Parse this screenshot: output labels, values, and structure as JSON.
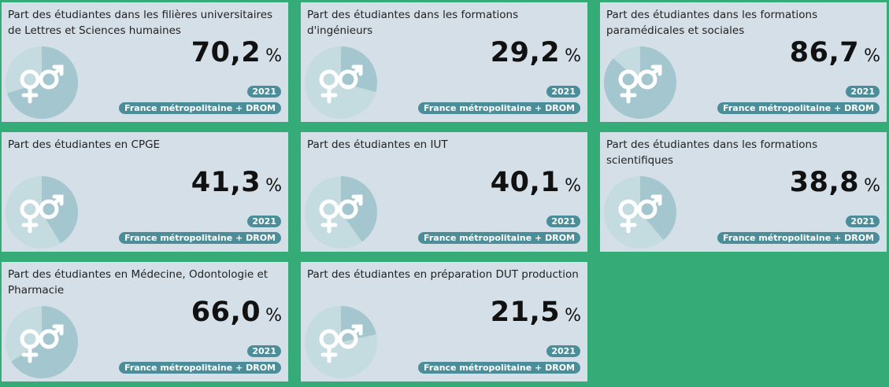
{
  "cards": [
    {
      "title": "Part des étudiantes dans les filières universitaires de Lettres et Sciences humaines",
      "value": "70,2",
      "pct": 70.2
    },
    {
      "title": "Part des étudiantes dans les formations d'ingénieurs",
      "value": "29,2",
      "pct": 29.2
    },
    {
      "title": "Part des étudiantes dans les formations paramédicales et sociales",
      "value": "86,7",
      "pct": 86.7
    },
    {
      "title": "Part des étudiantes en CPGE",
      "value": "41,3",
      "pct": 41.3
    },
    {
      "title": "Part des étudiantes en IUT",
      "value": "40,1",
      "pct": 40.1
    },
    {
      "title": "Part des étudiantes dans les formations scientifiques",
      "value": "38,8",
      "pct": 38.8
    },
    {
      "title": "Part des étudiantes en Médecine, Odontologie et Pharmacie",
      "value": "66,0",
      "pct": 66.0
    },
    {
      "title": "Part des étudiantes en préparation DUT production",
      "value": "21,5",
      "pct": 21.5
    }
  ],
  "unit": "%",
  "year": "2021",
  "geo": "France métropolitaine + DROM",
  "colors": {
    "background": "#35ab78",
    "card": "#d5dfe8",
    "pie_fill": "#a3c6cf",
    "pie_rest": "#c4dbe0",
    "badge": "#4b8e99"
  },
  "icon": "female-male-gender-icon"
}
